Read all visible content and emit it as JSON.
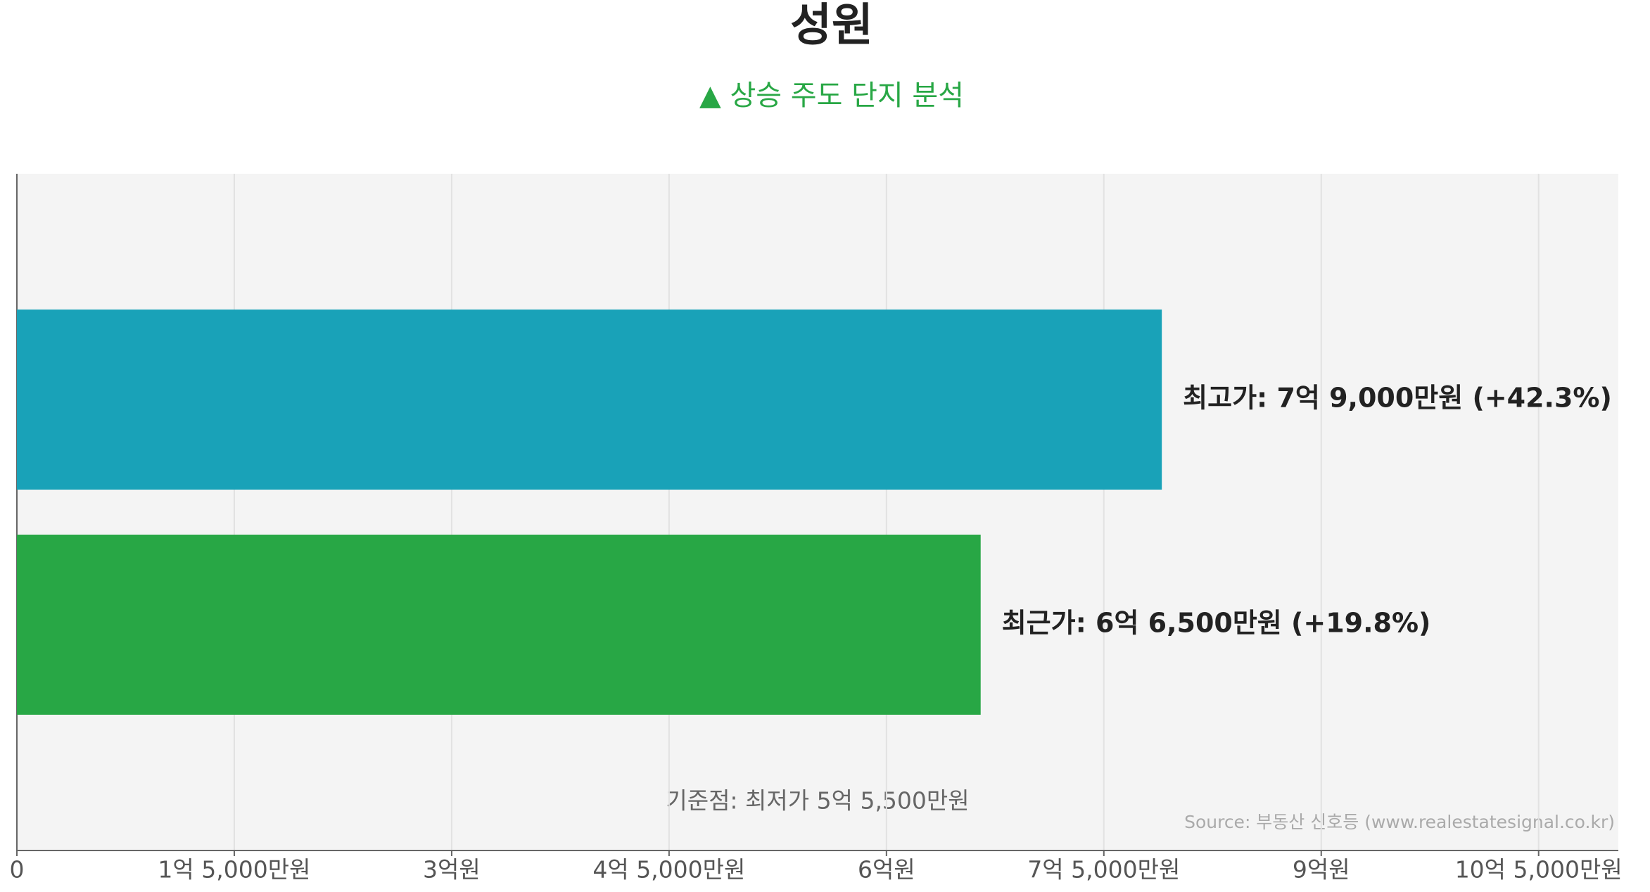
{
  "chart_data": {
    "type": "hbar",
    "title": "성원",
    "subtitle": "▲ 상승 주도 단지 분석",
    "categories": [
      null,
      null
    ],
    "values": [
      790000000,
      665000000
    ],
    "value_labels": [
      "최고가: 7억 9,000만원 (+42.3%)",
      "최근가: 6억 6,500만원 (+19.8%)"
    ],
    "colors": [
      "#19a2b8",
      "#28a745"
    ],
    "xlim": [
      0,
      1105000000
    ],
    "xticks": [
      0,
      {
        "value": 150000000,
        "label": "1억 5,000만원"
      },
      {
        "value": 300000000,
        "label": "3억원"
      },
      {
        "value": 450000000,
        "label": "4억 5,000만원"
      },
      {
        "value": 600000000,
        "label": "6억원"
      },
      {
        "value": 750000000,
        "label": "7억 5,000만원"
      },
      {
        "value": 900000000,
        "label": "9억원"
      },
      {
        "value": 1050000000,
        "label": "10억 5,000만원"
      }
    ],
    "grid": true,
    "annotation": "기준점: 최저가 5억 5,500만원",
    "source": "Source: 부동산 신호등 (www.realestatesignal.co.kr)"
  }
}
